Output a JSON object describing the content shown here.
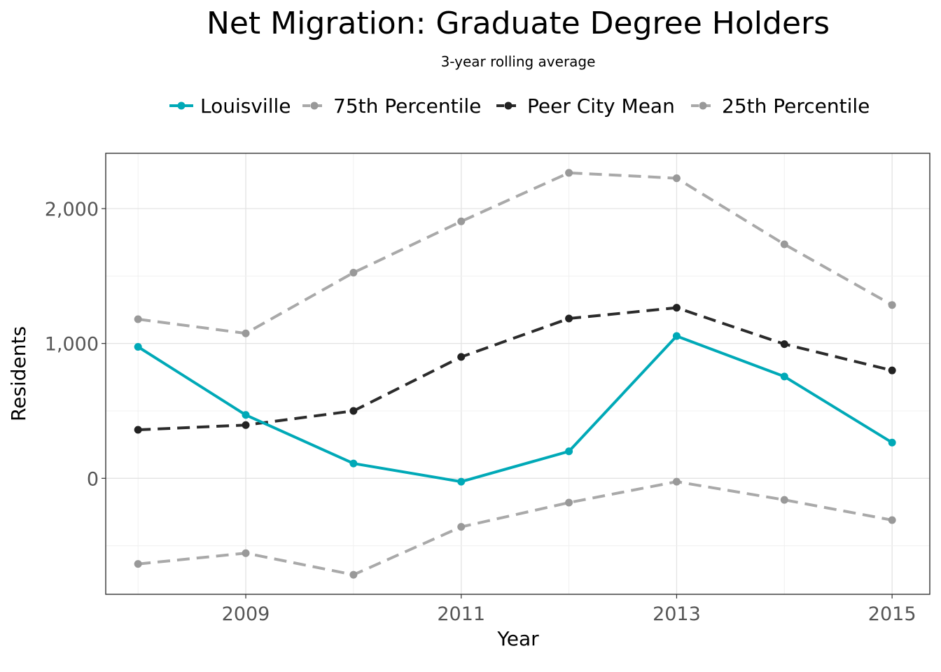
{
  "chart_data": {
    "type": "line",
    "title": "Net Migration: Graduate Degree Holders",
    "subtitle": "3-year rolling average",
    "xlabel": "Year",
    "ylabel": "Residents",
    "x": [
      2008,
      2009,
      2010,
      2011,
      2012,
      2013,
      2014,
      2015
    ],
    "x_ticks": [
      "2009",
      "2011",
      "2013",
      "2015"
    ],
    "x_tick_values": [
      2009,
      2011,
      2013,
      2015
    ],
    "xlim": [
      2007.7,
      2015.35
    ],
    "ylim": [
      -860,
      2410
    ],
    "y_ticks": [
      "0",
      "1,000",
      "2,000"
    ],
    "y_tick_values": [
      0,
      1000,
      2000
    ],
    "grid": true,
    "legend_position": "top",
    "series": [
      {
        "name": "Louisville",
        "color": "#00a9b7",
        "dash": "solid",
        "values": [
          975,
          470,
          110,
          -25,
          200,
          1055,
          755,
          265
        ]
      },
      {
        "name": "75th Percentile",
        "color": "#a9a9a9",
        "dash": "dashed",
        "values": [
          1180,
          1075,
          1525,
          1905,
          2265,
          2225,
          1735,
          1285
        ]
      },
      {
        "name": "Peer City Mean",
        "color": "#2b2b2b",
        "dash": "dashed",
        "values": [
          360,
          395,
          500,
          900,
          1185,
          1265,
          995,
          800
        ]
      },
      {
        "name": "25th Percentile",
        "color": "#a9a9a9",
        "dash": "dashed",
        "values": [
          -635,
          -555,
          -715,
          -360,
          -180,
          -25,
          -160,
          -310
        ]
      }
    ]
  }
}
